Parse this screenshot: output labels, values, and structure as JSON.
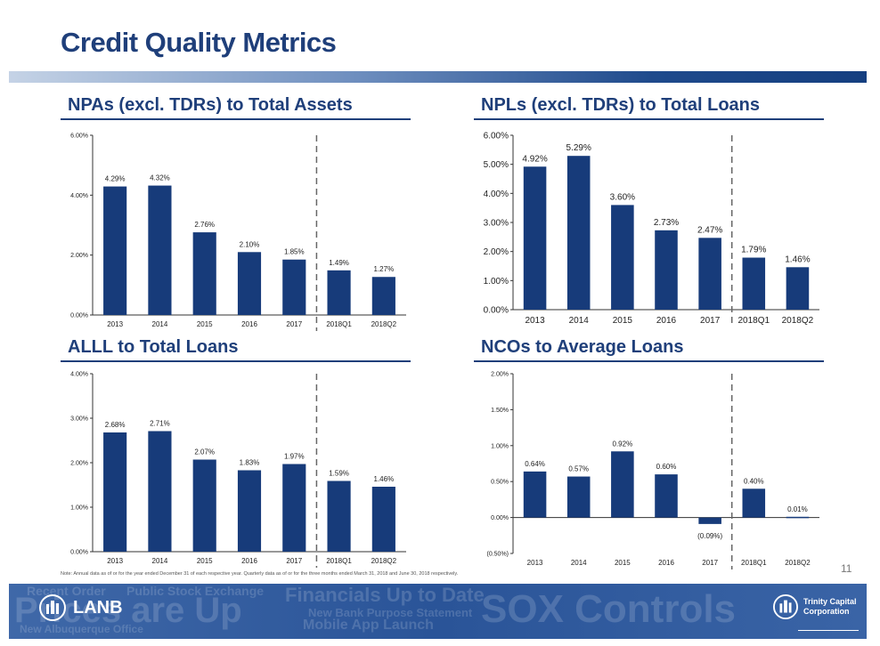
{
  "page": {
    "title": "Credit Quality Metrics",
    "note": "Note: Annual data as of or for the year ended December 31 of each respective year. Quarterly data as of or for the three months ended March 31, 2018 and June 30, 2018 respectively.",
    "page_number": "11",
    "colors": {
      "title": "#1f3f7a",
      "bar": "#173b7a",
      "footer": "#2f5a9f"
    }
  },
  "footer": {
    "left_logo_label": "LANB",
    "right_logo_label_line1": "Trinity Capital",
    "right_logo_label_line2": "Corporation",
    "background_text": [
      "Recent Order",
      "Public Stock Exchange",
      "Prices are Up",
      "Financials Up to Date",
      "New Bank Purpose Statement",
      "Mobile App Launch",
      "SOX Controls",
      "New Albuquerque Office"
    ]
  },
  "chart_data": [
    {
      "type": "bar",
      "title": "NPAs (excl. TDRs) to Total Assets",
      "categories": [
        "2013",
        "2014",
        "2015",
        "2016",
        "2017",
        "2018Q1",
        "2018Q2"
      ],
      "values": [
        4.29,
        4.32,
        2.76,
        2.1,
        1.85,
        1.49,
        1.27
      ],
      "value_labels": [
        "4.29%",
        "4.32%",
        "2.76%",
        "2.10%",
        "1.85%",
        "1.49%",
        "1.27%"
      ],
      "yticks": [
        "0.00%",
        "2.00%",
        "4.00%",
        "6.00%"
      ],
      "ytick_values": [
        0,
        2,
        4,
        6
      ],
      "ylim": [
        0,
        6
      ],
      "divider_after_index": 4
    },
    {
      "type": "bar",
      "title": "NPLs (excl. TDRs) to Total Loans",
      "categories": [
        "2013",
        "2014",
        "2015",
        "2016",
        "2017",
        "2018Q1",
        "2018Q2"
      ],
      "values": [
        4.92,
        5.29,
        3.6,
        2.73,
        2.47,
        1.79,
        1.46
      ],
      "value_labels": [
        "4.92%",
        "5.29%",
        "3.60%",
        "2.73%",
        "2.47%",
        "1.79%",
        "1.46%"
      ],
      "yticks": [
        "0.00%",
        "1.00%",
        "2.00%",
        "3.00%",
        "4.00%",
        "5.00%",
        "6.00%"
      ],
      "ytick_values": [
        0,
        1,
        2,
        3,
        4,
        5,
        6
      ],
      "ylim": [
        0,
        6
      ],
      "divider_after_index": 4
    },
    {
      "type": "bar",
      "title": "ALLL to Total Loans",
      "categories": [
        "2013",
        "2014",
        "2015",
        "2016",
        "2017",
        "2018Q1",
        "2018Q2"
      ],
      "values": [
        2.68,
        2.71,
        2.07,
        1.83,
        1.97,
        1.59,
        1.46
      ],
      "value_labels": [
        "2.68%",
        "2.71%",
        "2.07%",
        "1.83%",
        "1.97%",
        "1.59%",
        "1.46%"
      ],
      "yticks": [
        "0.00%",
        "1.00%",
        "2.00%",
        "3.00%",
        "4.00%"
      ],
      "ytick_values": [
        0,
        1,
        2,
        3,
        4
      ],
      "ylim": [
        0,
        4
      ],
      "divider_after_index": 4
    },
    {
      "type": "bar",
      "title": "NCOs to Average Loans",
      "categories": [
        "2013",
        "2014",
        "2015",
        "2016",
        "2017",
        "2018Q1",
        "2018Q2"
      ],
      "values": [
        0.64,
        0.57,
        0.92,
        0.6,
        -0.09,
        0.4,
        0.01
      ],
      "value_labels": [
        "0.64%",
        "0.57%",
        "0.92%",
        "0.60%",
        "(0.09%)",
        "0.40%",
        "0.01%"
      ],
      "yticks": [
        "(0.50%)",
        "0.00%",
        "0.50%",
        "1.00%",
        "1.50%",
        "2.00%"
      ],
      "ytick_values": [
        -0.5,
        0,
        0.5,
        1.0,
        1.5,
        2.0
      ],
      "ylim": [
        -0.5,
        2.0
      ],
      "divider_after_index": 4
    }
  ]
}
